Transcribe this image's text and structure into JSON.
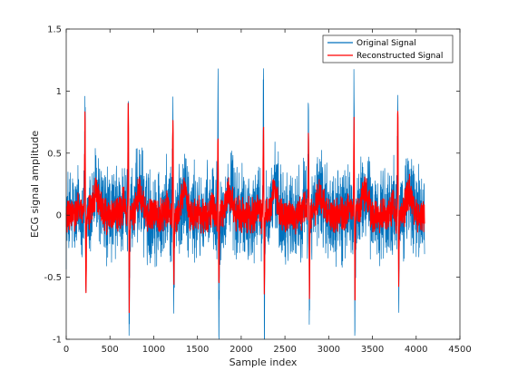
{
  "figure": {
    "background": "#ffffff"
  },
  "chart_data": {
    "type": "line",
    "title": "",
    "xlabel": "Sample index",
    "ylabel": "ECG signal amplitude",
    "xlim": [
      0,
      4500
    ],
    "ylim": [
      -1,
      1.5
    ],
    "xticks": [
      0,
      500,
      1000,
      1500,
      2000,
      2500,
      3000,
      3500,
      4000,
      4500
    ],
    "xtick_labels": [
      "0",
      "500",
      "1000",
      "1500",
      "2000",
      "2500",
      "3000",
      "3500",
      "4000",
      "4500"
    ],
    "yticks": [
      -1,
      -0.5,
      0,
      0.5,
      1,
      1.5
    ],
    "ytick_labels": [
      "-1",
      "-0.5",
      "0",
      "0.5",
      "1",
      "1.5"
    ],
    "grid": false,
    "legend": {
      "placement": "top-right"
    },
    "series": [
      {
        "name": "Original Signal",
        "color": "#0072BD",
        "x_range": [
          0,
          4096
        ],
        "beats_x": [
          215,
          710,
          1220,
          1735,
          2255,
          2770,
          3290,
          3790
        ],
        "peak_max": [
          0.98,
          1.11,
          1.07,
          1.16,
          1.04,
          1.0,
          1.02,
          1.03
        ],
        "trough_min": [
          -0.96,
          -0.97,
          -0.92,
          -0.95,
          -0.9,
          -0.87,
          -0.87,
          -0.86
        ],
        "noise_band": [
          -0.25,
          0.3
        ],
        "baseline": 0.0
      },
      {
        "name": "Reconstructed Signal",
        "color": "#FF0000",
        "x_range": [
          0,
          4096
        ],
        "beats_x": [
          215,
          710,
          1220,
          1735,
          2255,
          2770,
          3290,
          3790
        ],
        "peak_max": [
          0.86,
          1.0,
          0.9,
          0.8,
          0.88,
          0.72,
          0.83,
          1.02
        ],
        "trough_min": [
          -0.76,
          -0.78,
          -0.72,
          -0.75,
          -0.67,
          -0.67,
          -0.73,
          -0.63
        ],
        "noise_band": [
          -0.12,
          0.12
        ],
        "baseline": 0.0
      }
    ]
  }
}
